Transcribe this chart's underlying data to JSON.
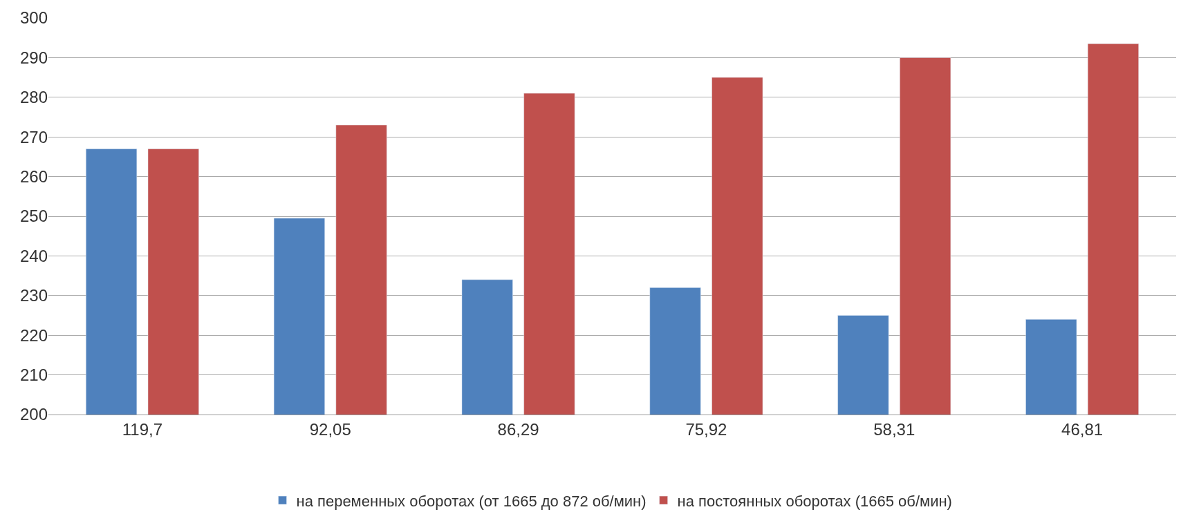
{
  "chart_data": {
    "type": "bar",
    "categories": [
      "119,7",
      "92,05",
      "86,29",
      "75,92",
      "58,31",
      "46,81"
    ],
    "series": [
      {
        "name": "на переменных оборотах (от 1665 до 872 об/мин)",
        "color": "#4f81bd",
        "values": [
          267,
          249.5,
          234,
          232,
          225,
          224
        ]
      },
      {
        "name": "на постоянных оборотах (1665 об/мин)",
        "color": "#c0504d",
        "values": [
          267,
          273,
          281,
          285,
          290,
          293.5
        ]
      }
    ],
    "ylim": [
      200,
      300
    ],
    "yticks": [
      200,
      210,
      220,
      230,
      240,
      250,
      260,
      270,
      280,
      290,
      300
    ],
    "grid": "y",
    "legend": "bottom"
  }
}
